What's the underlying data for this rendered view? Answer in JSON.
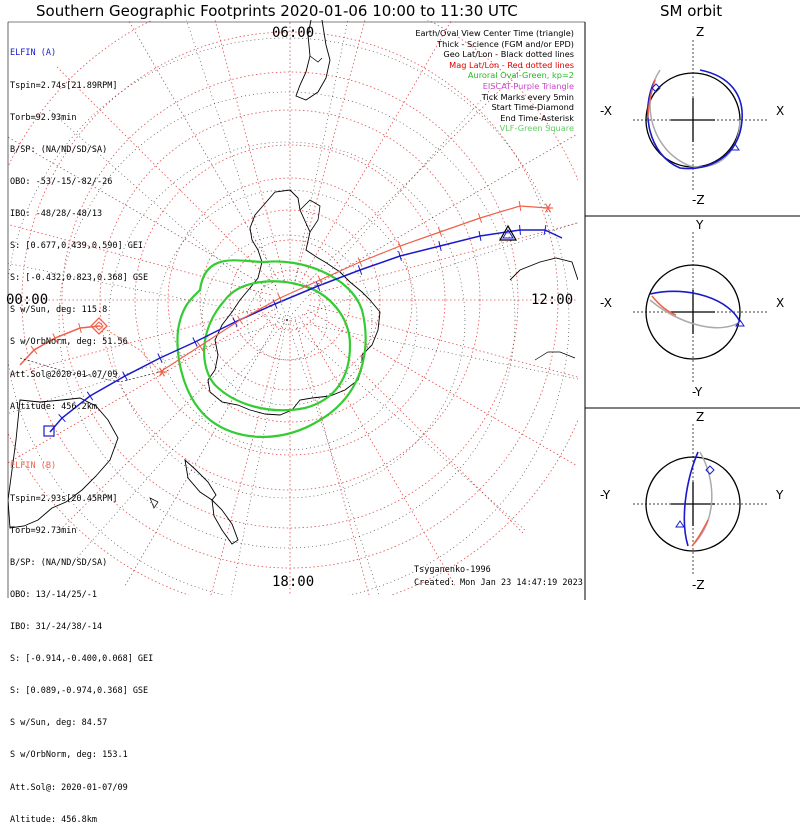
{
  "titles": {
    "main": "Southern Geographic Footprints 2020-01-06 10:00 to 11:30 UTC",
    "orbit": "SM orbit"
  },
  "elfin_a": {
    "name": "ELFIN (A)",
    "color": "#1a1acc",
    "lines": [
      "Tspin=2.74s[21.89RPM]",
      "Torb=92.93min",
      "B/SP: (NA/ND/SD/SA)",
      "OBO: -53/-15/-82/-26",
      "IBO: -48/28/-48/13",
      "S: [0.677,0.439,0.590] GEI",
      "S: [-0.432,0.823,0.368] GSE",
      "S w/Sun, deg: 115.8",
      "S w/OrbNorm, deg: 51.56",
      "Att.Sol@2020-01-07/09",
      "Altitude: 456.2km"
    ]
  },
  "elfin_b": {
    "name": "ELFIN (B)",
    "color": "#f0604a",
    "lines": [
      "Tspin=2.93s[20.45RPM]",
      "Torb=92.73min",
      "B/SP: (NA/ND/SD/SA)",
      "OBO: 13/-14/25/-1",
      "IBO: 31/-24/38/-14",
      "S: [-0.914,-0.400,0.068] GEI",
      "S: [0.089,-0.974,0.368] GSE",
      "S w/Sun, deg: 84.57",
      "S w/OrbNorm, deg: 153.1",
      "Att.Sol@: 2020-01-07/09",
      "Altitude: 456.8km"
    ]
  },
  "legend": [
    {
      "text": "Earth/Oval View Center Time (triangle)",
      "color": "#000000"
    },
    {
      "text": "Thick - Science (FGM and/or EPD)",
      "color": "#000000"
    },
    {
      "text": "Geo Lat/Lon - Black dotted lines",
      "color": "#000000"
    },
    {
      "text": "Mag Lat/Lon - Red dotted lines",
      "color": "#dd0000"
    },
    {
      "text": "Auroral Oval-Green, kp=2",
      "color": "#22bb22"
    },
    {
      "text": "EISCAT-Purple Triangle",
      "color": "#cc44cc"
    },
    {
      "text": "Tick Marks every 5min",
      "color": "#000000"
    },
    {
      "text": "Start Time-Diamond",
      "color": "#000000"
    },
    {
      "text": "End Time-Asterisk",
      "color": "#000000"
    },
    {
      "text": "VLF-Green Square",
      "color": "#66cc66"
    }
  ],
  "mlt_labels": {
    "top": "06:00",
    "left": "00:00",
    "right": "12:00",
    "bottom": "18:00"
  },
  "credits": {
    "left": "Tsyganenko-1996",
    "right": "Created: Mon Jan 23 14:47:19 2023"
  },
  "orbit_panels": [
    {
      "top": "Z",
      "bottom": "-Z",
      "left": "-X",
      "right": "X"
    },
    {
      "top": "Y",
      "bottom": "-Y",
      "left": "-X",
      "right": "X"
    },
    {
      "top": "Z",
      "bottom": "-Z",
      "left": "-Y",
      "right": "Y"
    }
  ],
  "chart_data": {
    "type": "polar_map",
    "projection": "south polar",
    "grid": "on",
    "auroral_oval_kp": 2,
    "series": [
      {
        "name": "ELFIN (A)",
        "color": "#1a1acc"
      },
      {
        "name": "ELFIN (B)",
        "color": "#f0604a"
      }
    ]
  }
}
